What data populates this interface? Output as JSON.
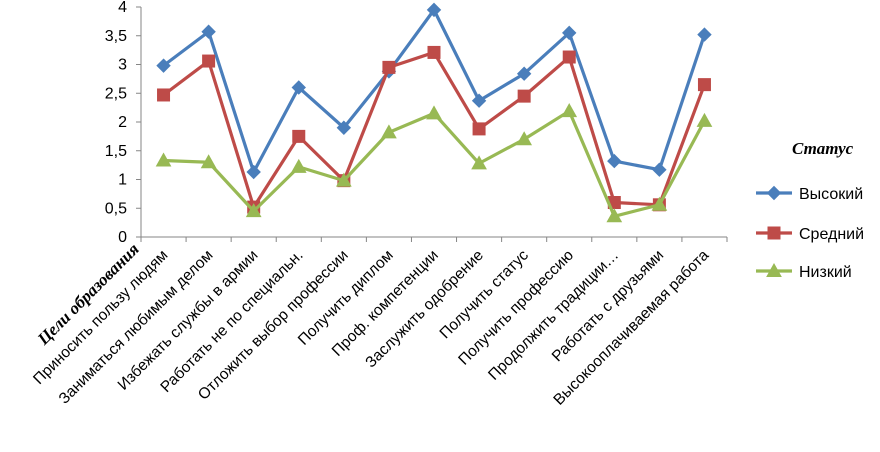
{
  "chart_data": {
    "type": "line",
    "xlabel": "Цели образования",
    "ylabel": "",
    "ylim": [
      0,
      4
    ],
    "ytick_step": 0.5,
    "ytick_labels": [
      "0",
      "0,5",
      "1",
      "1,5",
      "2",
      "2,5",
      "3",
      "3,5",
      "4"
    ],
    "grid": false,
    "categories": [
      "Приносить пользу людям",
      "Заниматься любимым делом",
      "Избежать службы в армии",
      "Работать не по специальн.",
      "Отложить выбор профессии",
      "Получить диплом",
      "Проф. компетенции",
      "Заслужить одобрение",
      "Получить статус",
      "Получить профессию",
      "Продолжить традиции…",
      "Работать с друзьями",
      "Высокооплачиваемая работа"
    ],
    "legend": {
      "title": "Статус",
      "position": "right"
    },
    "series": [
      {
        "name": "Высокий",
        "color": "#4A7EBB",
        "marker": "diamond",
        "values": [
          2.98,
          3.57,
          1.13,
          2.6,
          1.9,
          2.88,
          3.95,
          2.37,
          2.84,
          3.55,
          1.32,
          1.17,
          3.52
        ]
      },
      {
        "name": "Средний",
        "color": "#BE4B48",
        "marker": "square",
        "values": [
          2.47,
          3.06,
          0.52,
          1.75,
          0.98,
          2.95,
          3.21,
          1.88,
          2.45,
          3.13,
          0.6,
          0.56,
          2.65
        ]
      },
      {
        "name": "Низкий",
        "color": "#98B954",
        "marker": "triangle",
        "values": [
          1.33,
          1.3,
          0.45,
          1.22,
          0.98,
          1.82,
          2.15,
          1.28,
          1.7,
          2.19,
          0.36,
          0.56,
          2.02
        ]
      }
    ]
  }
}
